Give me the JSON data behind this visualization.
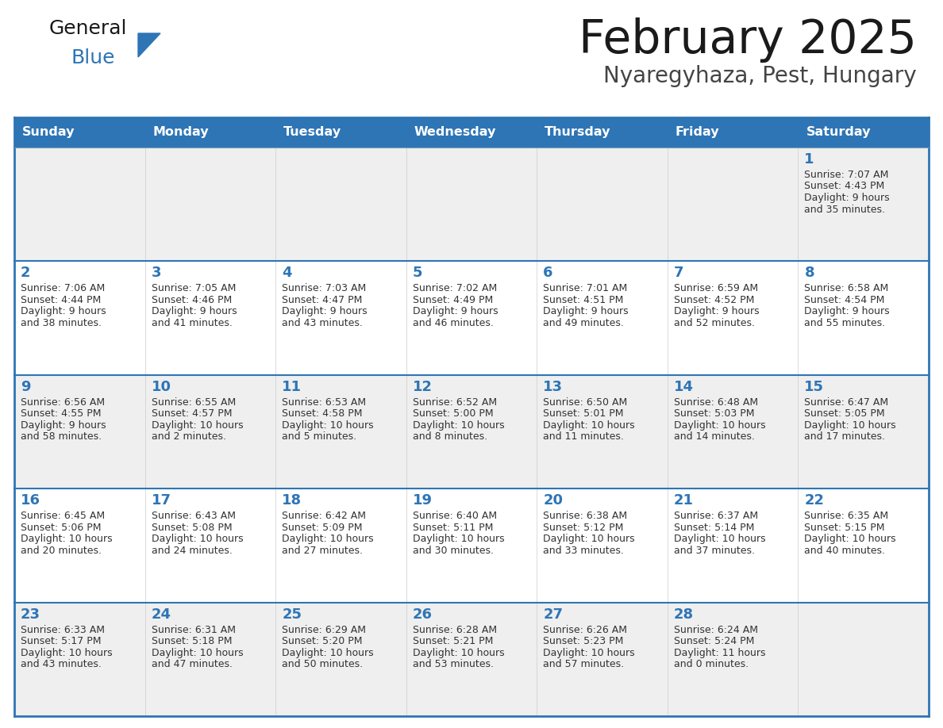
{
  "title": "February 2025",
  "subtitle": "Nyaregyhaza, Pest, Hungary",
  "header_bg": "#2E75B6",
  "header_text_color": "#FFFFFF",
  "border_color": "#2E75B6",
  "day_names": [
    "Sunday",
    "Monday",
    "Tuesday",
    "Wednesday",
    "Thursday",
    "Friday",
    "Saturday"
  ],
  "title_color": "#1a1a1a",
  "subtitle_color": "#444444",
  "day_num_color": "#2E75B6",
  "info_color": "#333333",
  "row_bg_even": "#EFEFEF",
  "row_bg_odd": "#FFFFFF",
  "logo_general_color": "#1a1a1a",
  "logo_blue_color": "#2E75B6",
  "logo_triangle_color": "#2E75B6",
  "calendar": [
    [
      null,
      null,
      null,
      null,
      null,
      null,
      {
        "day": 1,
        "sunrise": "7:07 AM",
        "sunset": "4:43 PM",
        "daylight": "9 hours\nand 35 minutes."
      }
    ],
    [
      {
        "day": 2,
        "sunrise": "7:06 AM",
        "sunset": "4:44 PM",
        "daylight": "9 hours\nand 38 minutes."
      },
      {
        "day": 3,
        "sunrise": "7:05 AM",
        "sunset": "4:46 PM",
        "daylight": "9 hours\nand 41 minutes."
      },
      {
        "day": 4,
        "sunrise": "7:03 AM",
        "sunset": "4:47 PM",
        "daylight": "9 hours\nand 43 minutes."
      },
      {
        "day": 5,
        "sunrise": "7:02 AM",
        "sunset": "4:49 PM",
        "daylight": "9 hours\nand 46 minutes."
      },
      {
        "day": 6,
        "sunrise": "7:01 AM",
        "sunset": "4:51 PM",
        "daylight": "9 hours\nand 49 minutes."
      },
      {
        "day": 7,
        "sunrise": "6:59 AM",
        "sunset": "4:52 PM",
        "daylight": "9 hours\nand 52 minutes."
      },
      {
        "day": 8,
        "sunrise": "6:58 AM",
        "sunset": "4:54 PM",
        "daylight": "9 hours\nand 55 minutes."
      }
    ],
    [
      {
        "day": 9,
        "sunrise": "6:56 AM",
        "sunset": "4:55 PM",
        "daylight": "9 hours\nand 58 minutes."
      },
      {
        "day": 10,
        "sunrise": "6:55 AM",
        "sunset": "4:57 PM",
        "daylight": "10 hours\nand 2 minutes."
      },
      {
        "day": 11,
        "sunrise": "6:53 AM",
        "sunset": "4:58 PM",
        "daylight": "10 hours\nand 5 minutes."
      },
      {
        "day": 12,
        "sunrise": "6:52 AM",
        "sunset": "5:00 PM",
        "daylight": "10 hours\nand 8 minutes."
      },
      {
        "day": 13,
        "sunrise": "6:50 AM",
        "sunset": "5:01 PM",
        "daylight": "10 hours\nand 11 minutes."
      },
      {
        "day": 14,
        "sunrise": "6:48 AM",
        "sunset": "5:03 PM",
        "daylight": "10 hours\nand 14 minutes."
      },
      {
        "day": 15,
        "sunrise": "6:47 AM",
        "sunset": "5:05 PM",
        "daylight": "10 hours\nand 17 minutes."
      }
    ],
    [
      {
        "day": 16,
        "sunrise": "6:45 AM",
        "sunset": "5:06 PM",
        "daylight": "10 hours\nand 20 minutes."
      },
      {
        "day": 17,
        "sunrise": "6:43 AM",
        "sunset": "5:08 PM",
        "daylight": "10 hours\nand 24 minutes."
      },
      {
        "day": 18,
        "sunrise": "6:42 AM",
        "sunset": "5:09 PM",
        "daylight": "10 hours\nand 27 minutes."
      },
      {
        "day": 19,
        "sunrise": "6:40 AM",
        "sunset": "5:11 PM",
        "daylight": "10 hours\nand 30 minutes."
      },
      {
        "day": 20,
        "sunrise": "6:38 AM",
        "sunset": "5:12 PM",
        "daylight": "10 hours\nand 33 minutes."
      },
      {
        "day": 21,
        "sunrise": "6:37 AM",
        "sunset": "5:14 PM",
        "daylight": "10 hours\nand 37 minutes."
      },
      {
        "day": 22,
        "sunrise": "6:35 AM",
        "sunset": "5:15 PM",
        "daylight": "10 hours\nand 40 minutes."
      }
    ],
    [
      {
        "day": 23,
        "sunrise": "6:33 AM",
        "sunset": "5:17 PM",
        "daylight": "10 hours\nand 43 minutes."
      },
      {
        "day": 24,
        "sunrise": "6:31 AM",
        "sunset": "5:18 PM",
        "daylight": "10 hours\nand 47 minutes."
      },
      {
        "day": 25,
        "sunrise": "6:29 AM",
        "sunset": "5:20 PM",
        "daylight": "10 hours\nand 50 minutes."
      },
      {
        "day": 26,
        "sunrise": "6:28 AM",
        "sunset": "5:21 PM",
        "daylight": "10 hours\nand 53 minutes."
      },
      {
        "day": 27,
        "sunrise": "6:26 AM",
        "sunset": "5:23 PM",
        "daylight": "10 hours\nand 57 minutes."
      },
      {
        "day": 28,
        "sunrise": "6:24 AM",
        "sunset": "5:24 PM",
        "daylight": "11 hours\nand 0 minutes."
      },
      null
    ]
  ]
}
